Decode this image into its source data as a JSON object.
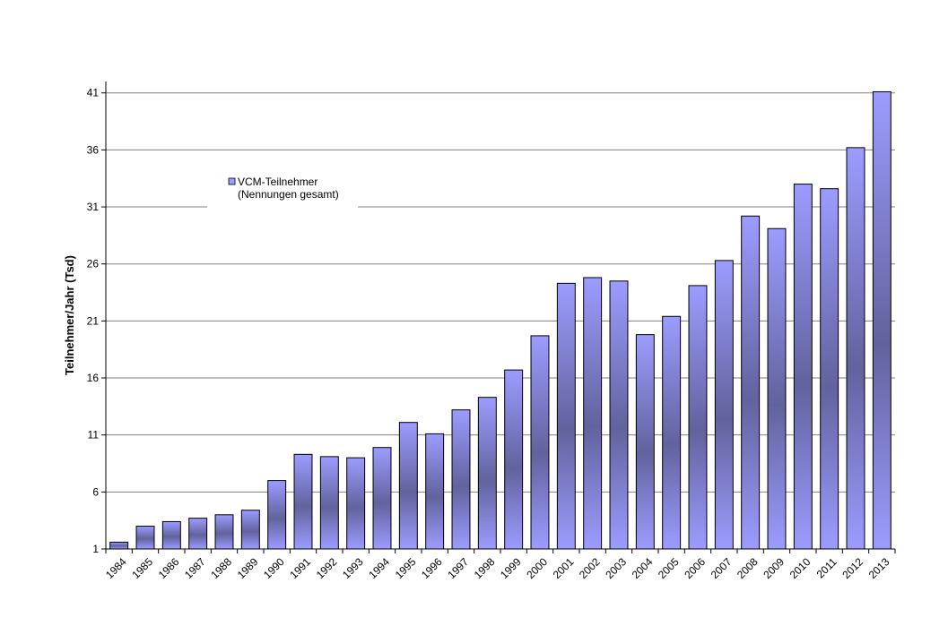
{
  "chart_data": {
    "type": "bar",
    "title": "",
    "xlabel": "",
    "ylabel": "Teilnehmer/Jahr (Tsd)",
    "ylim": [
      1,
      42
    ],
    "yticks": [
      1,
      6,
      11,
      16,
      21,
      26,
      31,
      36,
      41
    ],
    "grid": true,
    "legend_position": "top-left",
    "categories": [
      "1984",
      "1985",
      "1986",
      "1987",
      "1988",
      "1989",
      "1990",
      "1991",
      "1992",
      "1993",
      "1994",
      "1995",
      "1996",
      "1997",
      "1998",
      "1999",
      "2000",
      "2001",
      "2002",
      "2003",
      "2004",
      "2005",
      "2006",
      "2007",
      "2008",
      "2009",
      "2010",
      "2011",
      "2012",
      "2013"
    ],
    "series": [
      {
        "name": "VCM-Teilnehmer",
        "name_line2": "(Nennungen gesamt)",
        "color": "#9c9cff",
        "values": [
          1.6,
          3.0,
          3.4,
          3.7,
          4.0,
          4.4,
          7.0,
          9.3,
          9.1,
          9.0,
          9.9,
          12.1,
          11.1,
          13.2,
          14.3,
          16.7,
          19.7,
          24.3,
          24.8,
          24.5,
          19.8,
          21.4,
          24.1,
          26.3,
          30.2,
          29.1,
          33.0,
          32.6,
          36.2,
          41.1
        ]
      }
    ],
    "colors": {
      "bar_light": "#9c9cff",
      "bar_dark": "#62629e",
      "bar_outline": "#000000",
      "grid": "#808080"
    }
  }
}
